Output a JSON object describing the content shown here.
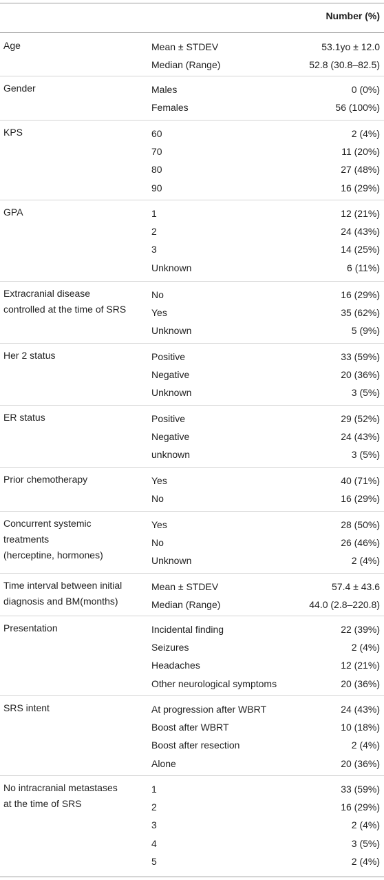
{
  "header": {
    "col3": "Number (%)"
  },
  "rows": [
    {
      "label": [
        "Age"
      ],
      "subs": [
        "Mean ± STDEV",
        "Median (Range)"
      ],
      "vals": [
        "53.1yo ± 12.0",
        "52.8 (30.8–82.5)"
      ]
    },
    {
      "label": [
        "Gender"
      ],
      "subs": [
        "Males",
        "Females"
      ],
      "vals": [
        "0 (0%)",
        "56 (100%)"
      ]
    },
    {
      "label": [
        "KPS"
      ],
      "subs": [
        "60",
        "70",
        "80",
        "90"
      ],
      "vals": [
        "2 (4%)",
        "11 (20%)",
        "27 (48%)",
        "16 (29%)"
      ]
    },
    {
      "label": [
        "GPA"
      ],
      "subs": [
        "1",
        "2",
        "3",
        "Unknown"
      ],
      "vals": [
        "12 (21%)",
        "24 (43%)",
        "14 (25%)",
        "6 (11%)"
      ]
    },
    {
      "label": [
        "Extracranial disease",
        "controlled at the time of SRS"
      ],
      "subs": [
        "No",
        "Yes",
        "Unknown"
      ],
      "vals": [
        "16 (29%)",
        "35 (62%)",
        "5 (9%)"
      ]
    },
    {
      "label": [
        "Her 2 status"
      ],
      "subs": [
        "Positive",
        "Negative",
        "Unknown"
      ],
      "vals": [
        "33 (59%)",
        "20 (36%)",
        "3 (5%)"
      ]
    },
    {
      "label": [
        "ER status"
      ],
      "subs": [
        "Positive",
        "Negative",
        "unknown"
      ],
      "vals": [
        "29 (52%)",
        "24 (43%)",
        "3 (5%)"
      ]
    },
    {
      "label": [
        "Prior chemotherapy"
      ],
      "subs": [
        "Yes",
        "No"
      ],
      "vals": [
        "40 (71%)",
        "16 (29%)"
      ]
    },
    {
      "label": [
        "Concurrent systemic",
        "treatments",
        "(herceptine, hormones)"
      ],
      "subs": [
        "Yes",
        "No",
        "Unknown"
      ],
      "vals": [
        "28 (50%)",
        "26 (46%)",
        "2 (4%)"
      ]
    },
    {
      "label": [
        "Time interval between initial",
        "diagnosis and BM(months)"
      ],
      "subs": [
        "Mean ± STDEV",
        "Median (Range)"
      ],
      "vals": [
        "57.4 ± 43.6",
        "44.0 (2.8–220.8)"
      ]
    },
    {
      "label": [
        "Presentation"
      ],
      "subs": [
        "Incidental finding",
        "Seizures",
        "Headaches",
        "Other neurological symptoms"
      ],
      "vals": [
        "22 (39%)",
        "2 (4%)",
        "12 (21%)",
        "20 (36%)"
      ]
    },
    {
      "label": [
        "SRS intent"
      ],
      "subs": [
        "At progression after WBRT",
        "Boost after WBRT",
        "Boost after resection",
        "Alone"
      ],
      "vals": [
        "24 (43%)",
        "10 (18%)",
        "2 (4%)",
        "20 (36%)"
      ]
    },
    {
      "label": [
        "No intracranial metastases",
        "at the time of SRS"
      ],
      "subs": [
        "1",
        "2",
        "3",
        "4",
        "5"
      ],
      "vals": [
        "33 (59%)",
        "16 (29%)",
        "2 (4%)",
        "3 (5%)",
        "2 (4%)"
      ]
    }
  ]
}
